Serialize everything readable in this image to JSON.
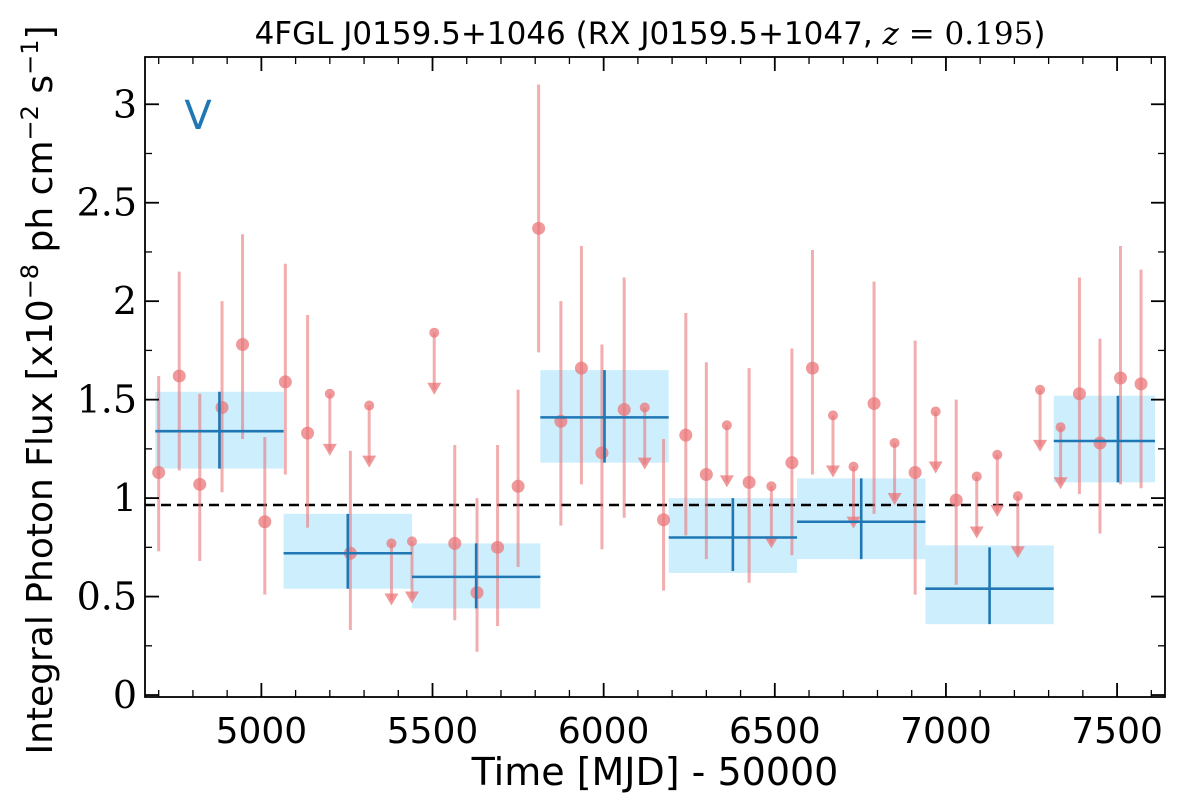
{
  "chart_data": {
    "type": "scatter",
    "title": {
      "prefix": "4FGL J0159.5+1046 (RX J0159.5+1047, ",
      "z_symbol": "z",
      "equals": " = 0.195",
      "suffix": ")"
    },
    "xlabel": "Time [MJD] - 50000",
    "ylabel": {
      "prefix": "Integral Photon Flux [x10",
      "exponent": "−8",
      "middle": " ph cm",
      "exponent2": "−2",
      "suffix": " s",
      "exponent3": "−1",
      "end": "]"
    },
    "annotation": "V",
    "xlim": [
      4660,
      7640
    ],
    "ylim": [
      -0.01,
      3.24
    ],
    "xticks": [
      5000,
      5500,
      6000,
      6500,
      7000,
      7500
    ],
    "xtick_labels": [
      "5000",
      "5500",
      "6000",
      "6500",
      "7000",
      "7500"
    ],
    "yticks": [
      0,
      0.5,
      1,
      1.5,
      2,
      2.5,
      3
    ],
    "ytick_labels": [
      "0",
      "0.5",
      "1",
      "1.5",
      "2",
      "2.5",
      "3"
    ],
    "mean_flux": 0.965,
    "grid": false,
    "colors": {
      "points": "#e9777a",
      "bins": "#1f77b4",
      "bin_band": "#cdeefd",
      "mean_line": "#000000",
      "annotation": "#1f77b4"
    },
    "points": [
      {
        "x": 4700,
        "y": 1.13,
        "lo": 0.73,
        "hi": 1.62
      },
      {
        "x": 4760,
        "y": 1.62,
        "lo": 1.14,
        "hi": 2.15
      },
      {
        "x": 4820,
        "y": 1.07,
        "lo": 0.68,
        "hi": 1.53
      },
      {
        "x": 4885,
        "y": 1.46,
        "lo": 1.03,
        "hi": 2.0
      },
      {
        "x": 4945,
        "y": 1.78,
        "lo": 1.3,
        "hi": 2.34
      },
      {
        "x": 5010,
        "y": 0.88,
        "lo": 0.51,
        "hi": 1.31
      },
      {
        "x": 5070,
        "y": 1.59,
        "lo": 1.12,
        "hi": 2.19
      },
      {
        "x": 5135,
        "y": 1.33,
        "lo": 0.85,
        "hi": 1.93
      },
      {
        "x": 5260,
        "y": 0.72,
        "lo": 0.33,
        "hi": 1.24
      },
      {
        "x": 5565,
        "y": 0.77,
        "lo": 0.38,
        "hi": 1.27
      },
      {
        "x": 5630,
        "y": 0.52,
        "lo": 0.22,
        "hi": 1.0
      },
      {
        "x": 5690,
        "y": 0.75,
        "lo": 0.35,
        "hi": 1.27
      },
      {
        "x": 5750,
        "y": 1.06,
        "lo": 0.65,
        "hi": 1.55
      },
      {
        "x": 5810,
        "y": 2.37,
        "lo": 1.74,
        "hi": 3.1
      },
      {
        "x": 5875,
        "y": 1.39,
        "lo": 0.86,
        "hi": 2.0
      },
      {
        "x": 5935,
        "y": 1.66,
        "lo": 1.07,
        "hi": 2.28
      },
      {
        "x": 5995,
        "y": 1.23,
        "lo": 0.74,
        "hi": 1.78
      },
      {
        "x": 6060,
        "y": 1.45,
        "lo": 0.9,
        "hi": 2.12
      },
      {
        "x": 6175,
        "y": 0.89,
        "lo": 0.53,
        "hi": 1.3
      },
      {
        "x": 6240,
        "y": 1.32,
        "lo": 0.81,
        "hi": 1.94
      },
      {
        "x": 6300,
        "y": 1.12,
        "lo": 0.69,
        "hi": 1.69
      },
      {
        "x": 6425,
        "y": 1.08,
        "lo": 0.57,
        "hi": 1.66
      },
      {
        "x": 6550,
        "y": 1.18,
        "lo": 0.71,
        "hi": 1.76
      },
      {
        "x": 6610,
        "y": 1.66,
        "lo": 1.12,
        "hi": 2.26
      },
      {
        "x": 6790,
        "y": 1.48,
        "lo": 0.92,
        "hi": 2.1
      },
      {
        "x": 6910,
        "y": 1.13,
        "lo": 0.51,
        "hi": 1.8
      },
      {
        "x": 7030,
        "y": 0.99,
        "lo": 0.56,
        "hi": 1.5
      },
      {
        "x": 7390,
        "y": 1.53,
        "lo": 1.02,
        "hi": 2.12
      },
      {
        "x": 7450,
        "y": 1.28,
        "lo": 0.82,
        "hi": 1.81
      },
      {
        "x": 7510,
        "y": 1.61,
        "lo": 1.07,
        "hi": 2.28
      },
      {
        "x": 7570,
        "y": 1.58,
        "lo": 1.05,
        "hi": 2.16
      }
    ],
    "upper_limits": [
      {
        "x": 5200,
        "y": 1.53
      },
      {
        "x": 5315,
        "y": 1.47
      },
      {
        "x": 5380,
        "y": 0.77
      },
      {
        "x": 5440,
        "y": 0.78
      },
      {
        "x": 5505,
        "y": 1.84
      },
      {
        "x": 6120,
        "y": 1.46
      },
      {
        "x": 6360,
        "y": 1.37
      },
      {
        "x": 6490,
        "y": 1.06
      },
      {
        "x": 6670,
        "y": 1.42
      },
      {
        "x": 6730,
        "y": 1.16
      },
      {
        "x": 6850,
        "y": 1.28
      },
      {
        "x": 6970,
        "y": 1.44
      },
      {
        "x": 7090,
        "y": 1.11
      },
      {
        "x": 7150,
        "y": 1.22
      },
      {
        "x": 7210,
        "y": 1.01
      },
      {
        "x": 7275,
        "y": 1.55
      },
      {
        "x": 7335,
        "y": 1.36
      }
    ],
    "bins": [
      {
        "x0": 4690,
        "x1": 5065,
        "y": 1.34,
        "lo": 1.15,
        "hi": 1.54,
        "band_lo": 1.15,
        "band_hi": 1.54
      },
      {
        "x0": 5065,
        "x1": 5440,
        "y": 0.72,
        "lo": 0.54,
        "hi": 0.92,
        "band_lo": 0.54,
        "band_hi": 0.92
      },
      {
        "x0": 5440,
        "x1": 5815,
        "y": 0.6,
        "lo": 0.44,
        "hi": 0.77,
        "band_lo": 0.44,
        "band_hi": 0.77
      },
      {
        "x0": 5815,
        "x1": 6190,
        "y": 1.41,
        "lo": 1.18,
        "hi": 1.65,
        "band_lo": 1.18,
        "band_hi": 1.65
      },
      {
        "x0": 6190,
        "x1": 6565,
        "y": 0.8,
        "lo": 0.63,
        "hi": 1.0,
        "band_lo": 0.62,
        "band_hi": 1.0
      },
      {
        "x0": 6565,
        "x1": 6940,
        "y": 0.88,
        "lo": 0.69,
        "hi": 1.1,
        "band_lo": 0.69,
        "band_hi": 1.1
      },
      {
        "x0": 6940,
        "x1": 7315,
        "y": 0.54,
        "lo": 0.36,
        "hi": 0.75,
        "band_lo": 0.36,
        "band_hi": 0.76
      },
      {
        "x0": 7315,
        "x1": 7690,
        "y": 1.29,
        "lo": 1.08,
        "hi": 1.52,
        "band_lo": 1.08,
        "band_hi": 1.52
      }
    ]
  }
}
